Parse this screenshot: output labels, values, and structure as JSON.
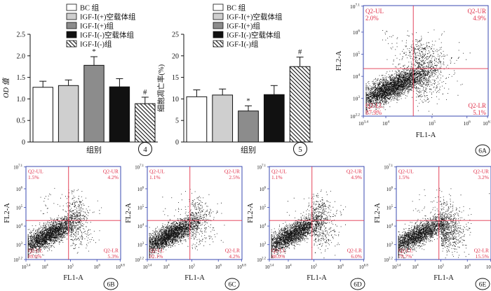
{
  "chart_data": [
    {
      "id": "4",
      "type": "bar",
      "ylabel": "OD 值",
      "xlabel": "组别",
      "panel_label": "4",
      "ylim": [
        0,
        2.5
      ],
      "yticks": [
        "0",
        "0.5",
        "1.0",
        "1.5",
        "2.0",
        "2.5"
      ],
      "legend": [
        "BC 组",
        "IGF-Ⅰ(+)空载体组",
        "IGF-Ⅰ(+)组",
        "IGF-Ⅰ(-)空载体组",
        "IGF-Ⅰ(-)组"
      ],
      "values": [
        1.27,
        1.31,
        1.78,
        1.28,
        0.89
      ],
      "errors": [
        0.14,
        0.13,
        0.2,
        0.19,
        0.15
      ],
      "annotations": [
        "",
        "",
        "*",
        "",
        "#"
      ],
      "fills": [
        "#ffffff",
        "#cfcfcf",
        "#8c8c8c",
        "#111111",
        "hatch"
      ]
    },
    {
      "id": "5",
      "type": "bar",
      "ylabel": "细胞凋亡率(%)",
      "xlabel": "组别",
      "panel_label": "5",
      "ylim": [
        0,
        25
      ],
      "yticks": [
        "0",
        "5",
        "10",
        "15",
        "20",
        "25"
      ],
      "legend": [
        "BC 组",
        "IGF-Ⅰ(+)空载体组",
        "IGF-Ⅰ(+)组",
        "IGF-Ⅰ(-)空载体组",
        "IGF-Ⅰ(-)组"
      ],
      "values": [
        10.5,
        10.9,
        7.2,
        11.0,
        17.5
      ],
      "errors": [
        1.6,
        1.4,
        1.2,
        2.1,
        2.2
      ],
      "annotations": [
        "",
        "",
        "*",
        "",
        "#"
      ],
      "fills": [
        "#ffffff",
        "#cfcfcf",
        "#8c8c8c",
        "#111111",
        "hatch"
      ]
    },
    {
      "id": "6A",
      "type": "scatter",
      "panel_label": "6A",
      "xlabel": "FL1-A",
      "ylabel": "FL2-A",
      "xticks": [
        "10^3.4",
        "10^4",
        "10^5",
        "10^6",
        "10^6.9"
      ],
      "yticks": [
        "10^2.2",
        "10^3",
        "10^4",
        "10^5",
        "10^6",
        "10^7.1"
      ],
      "quadrants": {
        "UL": "Q2-UL",
        "UR": "Q2-UR",
        "LL": "Q2-LL",
        "LR": "Q2-LR"
      },
      "percent": {
        "UL": "2.0%",
        "UR": "4.9%",
        "LL": "87.9%",
        "LR": "5.1%"
      }
    },
    {
      "id": "6B",
      "type": "scatter",
      "panel_label": "6B",
      "xlabel": "FL1-A",
      "ylabel": "FL2-A",
      "xticks": [
        "10^3.4",
        "10^4",
        "10^5",
        "10^6",
        "10^6.8"
      ],
      "yticks": [
        "10^2.2",
        "10^3",
        "10^4",
        "10^5",
        "10^6",
        "10^7.1"
      ],
      "quadrants": {
        "UL": "Q2-UL",
        "UR": "Q2-UR",
        "LL": "Q2-LL",
        "LR": "Q2-LR"
      },
      "percent": {
        "UL": "1.5%",
        "UR": "4.2%",
        "LL": "89.0%",
        "LR": "5.3%"
      }
    },
    {
      "id": "6C",
      "type": "scatter",
      "panel_label": "6C",
      "xlabel": "FL1-A",
      "ylabel": "FL2-A",
      "xticks": [
        "10^3.4",
        "10^4",
        "10^5",
        "10^6",
        "10^6.8"
      ],
      "yticks": [
        "10^2.2",
        "10^3",
        "10^4",
        "10^5",
        "10^6",
        "10^7.1"
      ],
      "quadrants": {
        "UL": "Q2-UL",
        "UR": "Q2-UR",
        "LL": "Q2-LL",
        "LR": "Q2-LR"
      },
      "percent": {
        "UL": "1.1%",
        "UR": "2.5%",
        "LL": "92.1%",
        "LR": "4.2%"
      }
    },
    {
      "id": "6D",
      "type": "scatter",
      "panel_label": "6D",
      "xlabel": "FL1-A",
      "ylabel": "FL2-A",
      "xticks": [
        "10^3.4",
        "10^4",
        "10^5",
        "10^6",
        "10^6.8"
      ],
      "yticks": [
        "10^2.2",
        "10^3",
        "10^4",
        "10^5",
        "10^6",
        "10^7.1"
      ],
      "quadrants": {
        "UL": "Q2-UL",
        "UR": "Q2-UR",
        "LL": "Q2-LL",
        "LR": "Q2-LR"
      },
      "percent": {
        "UL": "1.1%",
        "UR": "4.9%",
        "LL": "88.0%",
        "LR": "6.0%"
      }
    },
    {
      "id": "6E",
      "type": "scatter",
      "panel_label": "6E",
      "xlabel": "FL1-A",
      "ylabel": "FL2-A",
      "xticks": [
        "10^3.4",
        "10^4",
        "10^5",
        "10^6",
        "10^6.8"
      ],
      "yticks": [
        "10^2.2",
        "10^3",
        "10^4",
        "10^5",
        "10^6",
        "10^7.1"
      ],
      "quadrants": {
        "UL": "Q2-UL",
        "UR": "Q2-UR",
        "LL": "Q2-LL",
        "LR": "Q2-LR"
      },
      "percent": {
        "UL": "1.5%",
        "UR": "3.2%",
        "LL": "79.7%",
        "LR": "15.5%"
      }
    }
  ]
}
